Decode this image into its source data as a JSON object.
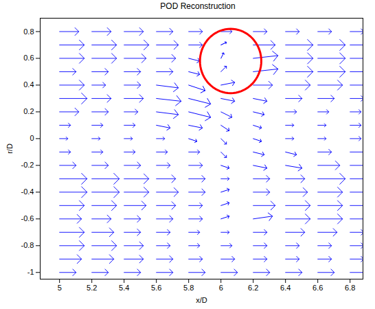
{
  "chart_data": {
    "type": "quiver",
    "title": "POD Reconstruction",
    "x_label": "x/D",
    "y_label": "r/D",
    "color": "#0000ff",
    "xlim": [
      4.88,
      6.88
    ],
    "ylim": [
      -1.05,
      0.9
    ],
    "xticks": [
      5,
      5.2,
      5.4,
      5.6,
      5.8,
      6,
      6.2,
      6.4,
      6.6,
      6.8
    ],
    "yticks": [
      -1,
      -0.8,
      -0.6,
      -0.4,
      -0.2,
      0,
      0.2,
      0.4,
      0.6,
      0.8
    ],
    "vectors": {
      "x": [
        5,
        5.2,
        5.4,
        5.6,
        5.8,
        6,
        6.2,
        6.4,
        6.6,
        6.8
      ],
      "y": [
        0.8,
        0.7,
        0.6,
        0.5,
        0.4,
        0.3,
        0.2,
        0.1,
        0,
        -0.1,
        -0.2,
        -0.3,
        -0.4,
        -0.5,
        -0.6,
        -0.7,
        -0.8,
        -0.9,
        -1
      ],
      "u": [
        [
          0.7,
          0.7,
          0.7,
          0.6,
          0.5,
          0.4,
          0.5,
          0.5,
          0.5,
          0.5
        ],
        [
          0.9,
          0.9,
          0.9,
          0.8,
          0.5,
          0.2,
          0.8,
          1.0,
          1.0,
          0.9
        ],
        [
          0.9,
          0.9,
          0.8,
          0.7,
          0.4,
          0.1,
          0.9,
          1.0,
          1.0,
          0.9
        ],
        [
          0.6,
          0.6,
          0.6,
          0.6,
          0.4,
          0.2,
          0.9,
          1.0,
          1.0,
          0.9
        ],
        [
          0.9,
          0.5,
          0.6,
          0.8,
          0.6,
          0.5,
          0.7,
          0.9,
          0.9,
          0.7
        ],
        [
          1.0,
          0.7,
          0.7,
          0.9,
          0.8,
          0.5,
          0.5,
          0.6,
          0.6,
          0.5
        ],
        [
          0.7,
          0.6,
          0.5,
          0.8,
          0.8,
          0.4,
          0.4,
          0.4,
          0.4,
          0.4
        ],
        [
          0.4,
          0.4,
          0.4,
          0.5,
          0.5,
          0.3,
          0.3,
          0.3,
          0.3,
          0.4
        ],
        [
          0.3,
          0.3,
          0.3,
          0.3,
          0.3,
          0.2,
          0.3,
          0.3,
          0.3,
          0.4
        ],
        [
          0.4,
          0.4,
          0.4,
          0.4,
          0.4,
          0.2,
          0.4,
          0.4,
          0.5,
          0.6
        ],
        [
          0.6,
          0.6,
          0.6,
          0.5,
          0.5,
          0.3,
          0.5,
          0.6,
          0.8,
          0.9
        ],
        [
          1.0,
          1.0,
          0.9,
          0.7,
          0.6,
          0.3,
          0.6,
          0.7,
          1.0,
          1.0
        ],
        [
          1.0,
          1.0,
          0.9,
          0.8,
          0.6,
          0.3,
          0.6,
          0.8,
          0.9,
          0.9
        ],
        [
          0.9,
          0.9,
          0.8,
          0.7,
          0.5,
          0.3,
          0.8,
          0.9,
          0.9,
          0.7
        ],
        [
          0.8,
          0.7,
          0.6,
          0.6,
          0.5,
          0.3,
          0.7,
          0.9,
          0.9,
          0.6
        ],
        [
          0.9,
          0.8,
          0.6,
          0.5,
          0.4,
          0.3,
          0.5,
          0.7,
          0.7,
          0.5
        ],
        [
          0.9,
          0.9,
          0.7,
          0.5,
          0.4,
          0.4,
          0.5,
          0.5,
          0.5,
          0.5
        ],
        [
          0.8,
          0.8,
          0.7,
          0.6,
          0.5,
          0.5,
          0.5,
          0.5,
          0.5,
          0.5
        ],
        [
          0.6,
          0.6,
          0.6,
          0.6,
          0.6,
          0.6,
          0.6,
          0.6,
          0.6,
          0.6
        ]
      ],
      "v": [
        [
          0,
          0,
          0,
          0,
          0,
          0,
          0,
          0,
          0,
          0
        ],
        [
          0,
          0,
          0,
          0,
          0,
          0.1,
          0,
          0,
          0,
          0
        ],
        [
          0,
          0,
          0,
          0,
          -0.1,
          0.2,
          0.1,
          0,
          0,
          0
        ],
        [
          0,
          0,
          0,
          0,
          -0.1,
          0.2,
          0.1,
          0,
          0,
          0
        ],
        [
          0,
          0,
          0,
          -0.1,
          -0.2,
          0.1,
          0,
          0,
          0,
          0
        ],
        [
          0,
          0,
          0,
          -0.1,
          -0.2,
          -0.1,
          -0.1,
          0,
          0,
          0
        ],
        [
          0,
          0,
          0,
          -0.1,
          -0.2,
          -0.2,
          -0.1,
          0,
          0,
          0
        ],
        [
          0,
          0,
          0,
          -0.1,
          -0.1,
          -0.2,
          -0.1,
          0,
          0,
          0
        ],
        [
          0,
          0,
          0,
          0,
          -0.1,
          -0.2,
          -0.1,
          0,
          0,
          0
        ],
        [
          0,
          0,
          0,
          0,
          0,
          -0.2,
          -0.1,
          -0.1,
          0,
          0
        ],
        [
          0,
          0,
          0,
          0,
          0,
          -0.1,
          -0.1,
          -0.1,
          0,
          0
        ],
        [
          0,
          0,
          0,
          0,
          0,
          0,
          0,
          0,
          0,
          0
        ],
        [
          0,
          0,
          0,
          0,
          0,
          0.1,
          0,
          0,
          0,
          0
        ],
        [
          0,
          0,
          0,
          0,
          0,
          0.1,
          0,
          0,
          0,
          0
        ],
        [
          0,
          0,
          0,
          0,
          0,
          0.1,
          0.1,
          0,
          0,
          0
        ],
        [
          0,
          0,
          0,
          0,
          0,
          0,
          0,
          0,
          0,
          0
        ],
        [
          0,
          0,
          0,
          0,
          0,
          0,
          0,
          0,
          0,
          0
        ],
        [
          0,
          0,
          0,
          0,
          0,
          0,
          0,
          0,
          0,
          0
        ],
        [
          0,
          0,
          0,
          0,
          0,
          0,
          0,
          0,
          0,
          0
        ]
      ]
    },
    "annotations": [
      {
        "shape": "circle",
        "x": 6.06,
        "y": 0.58,
        "rx": 0.19,
        "ry": 0.24,
        "color": "#ff0000"
      }
    ]
  }
}
